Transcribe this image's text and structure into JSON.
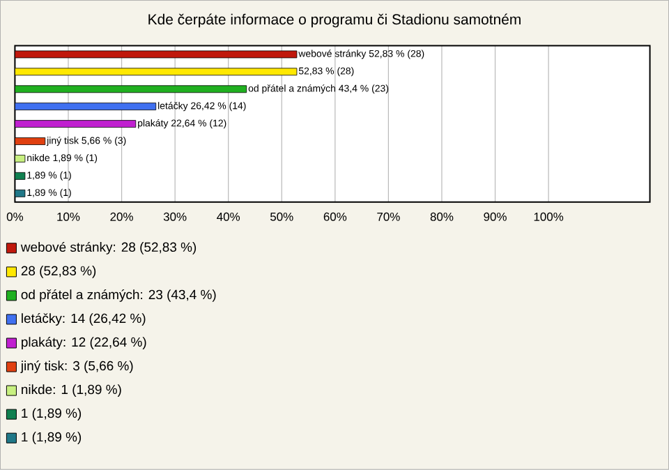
{
  "chart_data": {
    "type": "bar",
    "orientation": "horizontal",
    "title": "Kde čerpáte informace o programu či Stadionu samotném",
    "categories": [
      null,
      null,
      null,
      null,
      null,
      null,
      null,
      null,
      null
    ],
    "values": [
      52.83,
      52.83,
      43.4,
      26.42,
      22.64,
      5.66,
      1.89,
      1.89,
      1.89
    ],
    "colors": [
      "#c0180c",
      "#ffe800",
      "#20b020",
      "#4070f0",
      "#c020d0",
      "#e04010",
      "#c8f080",
      "#108050",
      "#207888"
    ],
    "value_labels": [
      "webové stránky 52,83 % (28)",
      "52,83 % (28)",
      "od přátel a známých 43,4 % (23)",
      "letáčky 26,42 % (14)",
      "plakáty 22,64 % (12)",
      "jiný tisk 5,66 % (3)",
      "nikde 1,89 % (1)",
      "1,89 % (1)",
      "1,89 % (1)"
    ],
    "xlim": [
      0,
      119
    ],
    "xticks": [
      {
        "value": 0,
        "label": "0%"
      },
      {
        "value": 10,
        "label": "10%"
      },
      {
        "value": 20,
        "label": "20%"
      },
      {
        "value": 30,
        "label": "30%"
      },
      {
        "value": 40,
        "label": "40%"
      },
      {
        "value": 50,
        "label": "50%"
      },
      {
        "value": 60,
        "label": "60%"
      },
      {
        "value": 70,
        "label": "70%"
      },
      {
        "value": 80,
        "label": "80%"
      },
      {
        "value": 90,
        "label": "90%"
      },
      {
        "value": 100,
        "label": "100%"
      }
    ],
    "tick_labels": "x",
    "grid": "x",
    "annotations": [
      "webové stránky: 28 (52,83 %)",
      "28 (52,83 %)",
      "od přátel a známých: 23 (43,4 %)",
      "letáčky: 14 (26,42 %)",
      "plakáty: 12 (22,64 %)",
      "jiný tisk: 3 (5,66 %)",
      "nikde: 1 (1,89 %)",
      "1 (1,89 %)",
      "1 (1,89 %)"
    ]
  }
}
